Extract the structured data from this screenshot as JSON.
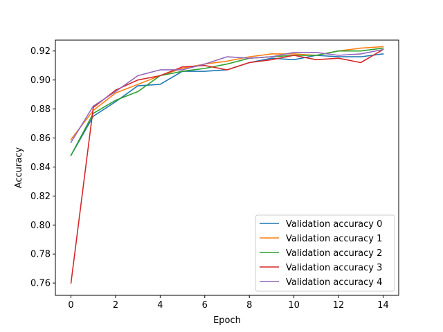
{
  "chart_data": {
    "type": "line",
    "title": "",
    "xlabel": "Epoch",
    "ylabel": "Accuracy",
    "xlim": [
      -0.7,
      14.7
    ],
    "ylim": [
      0.7515,
      0.9275
    ],
    "xticks": [
      0,
      2,
      4,
      6,
      8,
      10,
      12,
      14
    ],
    "yticks": [
      0.76,
      0.78,
      0.8,
      0.82,
      0.84,
      0.86,
      0.88,
      0.9,
      0.92
    ],
    "grid": false,
    "legend_position": "lower-right",
    "x": [
      0,
      1,
      2,
      3,
      4,
      5,
      6,
      7,
      8,
      9,
      10,
      11,
      12,
      13,
      14
    ],
    "series": [
      {
        "name": "Validation accuracy 0",
        "color": "#1f77b4",
        "values": [
          0.848,
          0.875,
          0.885,
          0.896,
          0.897,
          0.906,
          0.906,
          0.907,
          0.912,
          0.915,
          0.914,
          0.917,
          0.916,
          0.916,
          0.918
        ]
      },
      {
        "name": "Validation accuracy 1",
        "color": "#ff7f0e",
        "values": [
          0.859,
          0.879,
          0.891,
          0.897,
          0.903,
          0.908,
          0.911,
          0.913,
          0.916,
          0.918,
          0.918,
          0.917,
          0.92,
          0.922,
          0.923
        ]
      },
      {
        "name": "Validation accuracy 2",
        "color": "#2ca02c",
        "values": [
          0.848,
          0.877,
          0.886,
          0.892,
          0.903,
          0.906,
          0.908,
          0.911,
          0.915,
          0.916,
          0.917,
          0.917,
          0.92,
          0.92,
          0.922
        ]
      },
      {
        "name": "Validation accuracy 3",
        "color": "#d62728",
        "values": [
          0.76,
          0.881,
          0.893,
          0.9,
          0.903,
          0.909,
          0.91,
          0.907,
          0.912,
          0.914,
          0.917,
          0.914,
          0.915,
          0.912,
          0.921
        ]
      },
      {
        "name": "Validation accuracy 4",
        "color": "#9467bd",
        "values": [
          0.857,
          0.882,
          0.892,
          0.903,
          0.907,
          0.907,
          0.911,
          0.916,
          0.915,
          0.916,
          0.919,
          0.919,
          0.917,
          0.918,
          0.921
        ]
      }
    ]
  }
}
